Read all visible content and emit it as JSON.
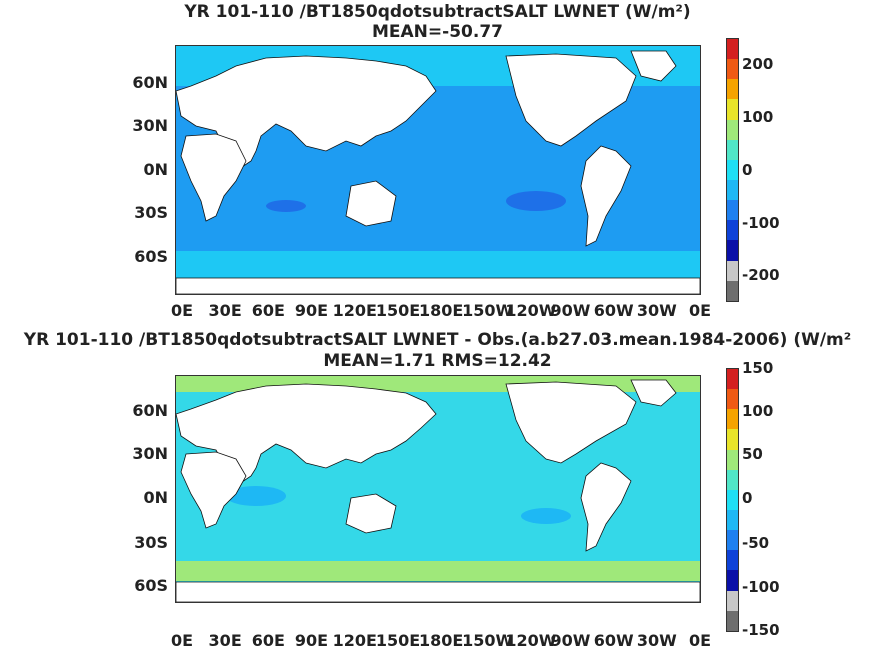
{
  "map1": {
    "title_line1": "YR 101-110 /BT1850qdotsubtractSALT  LWNET (W/m²)",
    "title_line2": "MEAN=-50.77",
    "colorbar_ticks": [
      "200",
      "100",
      "0",
      "-100",
      "-200"
    ],
    "colorbar_colors": [
      "#d42020",
      "#ef5a14",
      "#f5a300",
      "#e8e42a",
      "#9fe87a",
      "#50e6c8",
      "#1ee0f4",
      "#1eb8f4",
      "#1e80f0",
      "#0e42d8",
      "#0a10a8",
      "#c8c8c8",
      "#6e6e6e"
    ],
    "ocean_color": "#1e9cf2"
  },
  "map2": {
    "title_line1": "YR 101-110 /BT1850qdotsubtractSALT LWNET - Obs.(a.b27.03.mean.1984-2006) (W/m²",
    "title_line2": "MEAN=1.71 RMS=12.42",
    "colorbar_ticks": [
      "150",
      "100",
      "50",
      "0",
      "-50",
      "-100",
      "-150"
    ],
    "colorbar_colors": [
      "#d42020",
      "#ef5a14",
      "#f5a300",
      "#e8e42a",
      "#9fe87a",
      "#50e6c8",
      "#1ee0f4",
      "#1eb8f4",
      "#1e80f0",
      "#0e42d8",
      "#0a10a8",
      "#c8c8c8",
      "#6e6e6e"
    ],
    "ocean_color": "#34d8e8"
  },
  "axes": {
    "lat_labels": [
      "60N",
      "30N",
      "0N",
      "30S",
      "60S"
    ],
    "lon_labels": [
      "0E",
      "30E",
      "60E",
      "90E",
      "120E",
      "150E",
      "180E",
      "150W",
      "120W",
      "90W",
      "60W",
      "30W",
      "0E"
    ]
  }
}
